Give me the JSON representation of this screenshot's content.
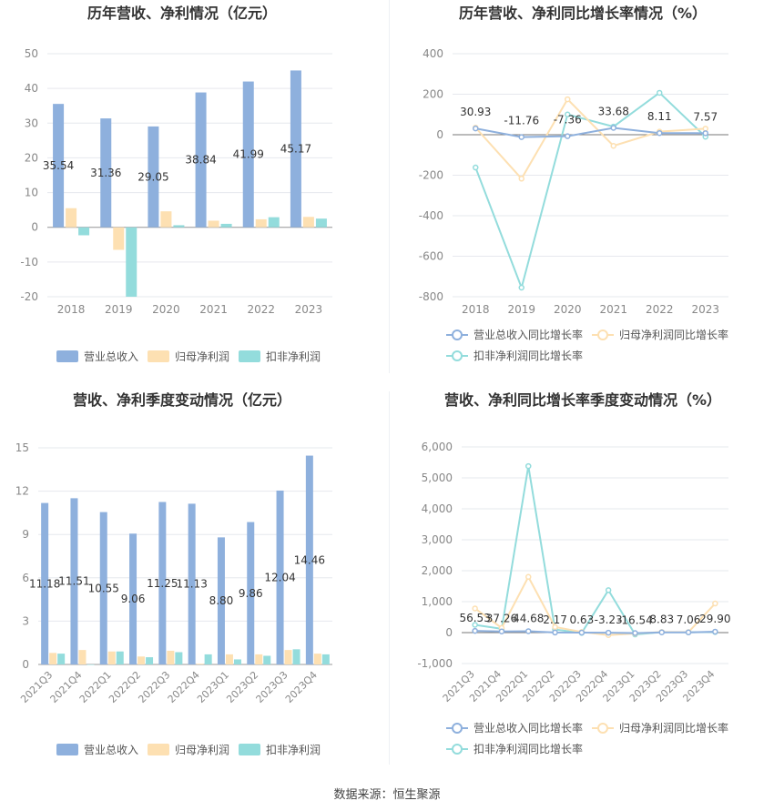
{
  "colors": {
    "revenue": "#8eb0dd",
    "netProfit": "#fde0b2",
    "deductedProfit": "#93dcdc",
    "axisText": "#888888",
    "grid": "#e6e8ee",
    "title": "#333333"
  },
  "footer": "数据来源：恒生聚源",
  "chart_data": [
    {
      "type": "bar",
      "title": "历年营收、净利情况（亿元）",
      "categories": [
        "2018",
        "2019",
        "2020",
        "2021",
        "2022",
        "2023"
      ],
      "ylim": [
        -20,
        50
      ],
      "yticks": [
        -20,
        -10,
        0,
        10,
        20,
        30,
        40,
        50
      ],
      "series": [
        {
          "name": "营业总收入",
          "values": [
            35.54,
            31.36,
            29.05,
            38.84,
            41.99,
            45.17
          ],
          "labels": [
            "35.54",
            "31.36",
            "29.05",
            "38.84",
            "41.99",
            "45.17"
          ]
        },
        {
          "name": "归母净利润",
          "values": [
            5.5,
            -6.5,
            4.6,
            1.9,
            2.3,
            3.0
          ]
        },
        {
          "name": "扣非净利润",
          "values": [
            -2.3,
            -20.0,
            0.6,
            1.0,
            2.9,
            2.5
          ]
        }
      ],
      "legend": "bottom"
    },
    {
      "type": "line",
      "title": "历年营收、净利同比增长率情况（%）",
      "categories": [
        "2018",
        "2019",
        "2020",
        "2021",
        "2022",
        "2023"
      ],
      "ylim": [
        -800,
        400
      ],
      "yticks": [
        -800,
        -600,
        -400,
        -200,
        0,
        200,
        400
      ],
      "series": [
        {
          "name": "营业总收入同比增长率",
          "values": [
            30.93,
            -11.76,
            -7.36,
            33.68,
            8.11,
            7.57
          ],
          "labels": [
            "30.93",
            "-11.76",
            "-7.36",
            "33.68",
            "8.11",
            "7.57"
          ]
        },
        {
          "name": "归母净利润同比增长率",
          "values": [
            35,
            -217,
            175,
            -55,
            15,
            30
          ]
        },
        {
          "name": "扣非净利润同比增长率",
          "values": [
            -162,
            -755,
            100,
            40,
            207,
            -10
          ]
        }
      ],
      "legend": "bottom"
    },
    {
      "type": "bar",
      "title": "营收、净利季度变动情况（亿元）",
      "categories": [
        "2021Q3",
        "2021Q4",
        "2022Q1",
        "2022Q2",
        "2022Q3",
        "2022Q4",
        "2023Q1",
        "2023Q2",
        "2023Q3",
        "2023Q4"
      ],
      "ylim": [
        0,
        15
      ],
      "yticks": [
        0,
        3,
        6,
        9,
        12,
        15
      ],
      "series": [
        {
          "name": "营业总收入",
          "values": [
            11.18,
            11.51,
            10.55,
            9.06,
            11.25,
            11.13,
            8.8,
            9.86,
            12.04,
            14.46
          ],
          "labels": [
            "11.18",
            "11.51",
            "10.55",
            "9.06",
            "11.25",
            "11.13",
            "8.80",
            "9.86",
            "12.04",
            "14.46"
          ]
        },
        {
          "name": "归母净利润",
          "values": [
            0.8,
            1.0,
            0.9,
            0.55,
            0.95,
            0.05,
            0.7,
            0.7,
            1.0,
            0.75
          ]
        },
        {
          "name": "扣非净利润",
          "values": [
            0.75,
            0.0,
            0.9,
            0.5,
            0.85,
            0.7,
            0.35,
            0.6,
            1.05,
            0.7
          ]
        }
      ],
      "legend": "bottom"
    },
    {
      "type": "line",
      "title": "营收、净利同比增长率季度变动情况（%）",
      "categories": [
        "2021Q3",
        "2021Q4",
        "2022Q1",
        "2022Q2",
        "2022Q3",
        "2022Q4",
        "2023Q1",
        "2023Q2",
        "2023Q3",
        "2023Q4"
      ],
      "ylim": [
        -1000,
        6000
      ],
      "yticks": [
        -1000,
        0,
        1000,
        2000,
        3000,
        4000,
        5000,
        6000
      ],
      "ytickLabels": [
        "-1,000",
        "0",
        "1,000",
        "2,000",
        "3,000",
        "4,000",
        "5,000",
        "6,000"
      ],
      "series": [
        {
          "name": "营业总收入同比增长率",
          "values": [
            56.53,
            37.26,
            44.68,
            2.17,
            0.63,
            -3.23,
            -16.54,
            8.83,
            7.06,
            29.9
          ],
          "labels": [
            "56.53",
            "37.26",
            "44.68",
            "2.17",
            "0.63",
            "-3.23",
            "-16.54",
            "8.83",
            "7.06",
            "29.90"
          ]
        },
        {
          "name": "归母净利润同比增长率",
          "values": [
            780,
            150,
            1800,
            180,
            20,
            -80,
            -30,
            20,
            15,
            940
          ]
        },
        {
          "name": "扣非净利润同比增长率",
          "values": [
            250,
            120,
            5380,
            100,
            -10,
            1370,
            -60,
            15,
            10,
            20
          ]
        }
      ],
      "legend": "bottom"
    }
  ]
}
